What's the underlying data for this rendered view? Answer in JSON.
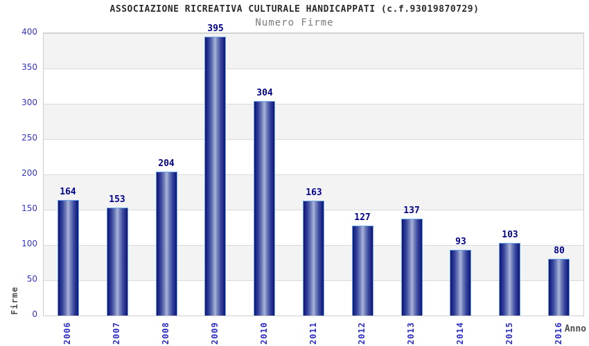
{
  "chart_data": {
    "type": "bar",
    "title": "ASSOCIAZIONE RICREATIVA CULTURALE HANDICAPPATI (c.f.93019870729)",
    "subtitle": "Numero Firme",
    "xlabel": "Anno",
    "ylabel": "Firme",
    "categories": [
      "2006",
      "2007",
      "2008",
      "2009",
      "2010",
      "2011",
      "2012",
      "2013",
      "2014",
      "2015",
      "2016"
    ],
    "values": [
      164,
      153,
      204,
      395,
      304,
      163,
      127,
      137,
      93,
      103,
      80
    ],
    "ylim": [
      0,
      400
    ],
    "ytick_step": 50,
    "legend": "none",
    "grid": "horizontal-bands",
    "colors": {
      "bar_dark": "#10156e",
      "bar_light": "#aab4da",
      "bar_border": "#69a8e8",
      "value_label": "#00008b",
      "tick_label": "#3333cc",
      "category_label": "#2d2dc9",
      "band": "#f3f3f3",
      "grid_line": "#d9d9d9",
      "plot_border": "#cccccc",
      "title": "#2b2b2b",
      "subtitle": "#7a7a7a",
      "axis_title": "#4d4d4d"
    }
  }
}
